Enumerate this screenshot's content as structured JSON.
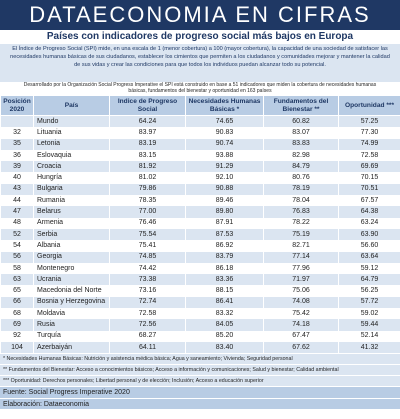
{
  "header": {
    "title": "DATAECONOMIA EN CIFRAS",
    "subtitle": "Países con indicadores de progreso social más bajos en Europa"
  },
  "intro": "El Índice de Progreso Social (SPI) mide, en una escala de 1 (menor cobertura) a 100 (mayor cobertura), la capacidad de una sociedad de satisfacer las necesidades humanas básicas de sus ciudadanos, establecer los cimientos que permiten a los ciudadanos y comunidades mejorar y mantener la calidad de sus vidas y crear las condiciones para que todos los individuos puedan alcanzar todo su potencial.",
  "note": "Desarrollado por la Organización Social Progress Imperative el SPI está construido en base a 51 indicadores que miden la cobertura de necesidades humanas básicas, fundamentos del bienestar y oportunidad en 163 países",
  "table": {
    "columns": [
      "Posición 2020",
      "País",
      "Indice de Progreso Social",
      "Necesidades Humanas Básicas *",
      "Fundamentos del Bienestar **",
      "Oportunidad ***"
    ],
    "rows": [
      [
        null,
        "Mundo",
        "64.24",
        "74.65",
        "60.82",
        "57.25"
      ],
      [
        "32",
        "Lituania",
        "83.97",
        "90.83",
        "83.07",
        "77.30"
      ],
      [
        "35",
        "Letonia",
        "83.19",
        "90.74",
        "83.83",
        "74.99"
      ],
      [
        "36",
        "Eslovaquia",
        "83.15",
        "93.88",
        "82.98",
        "72.58"
      ],
      [
        "39",
        "Croacia",
        "81.92",
        "91.29",
        "84.79",
        "69.69"
      ],
      [
        "40",
        "Hungría",
        "81.02",
        "92.10",
        "80.76",
        "70.15"
      ],
      [
        "43",
        "Bulgaria",
        "79.86",
        "90.88",
        "78.19",
        "70.51"
      ],
      [
        "44",
        "Rumania",
        "78.35",
        "89.46",
        "78.04",
        "67.57"
      ],
      [
        "47",
        "Belarus",
        "77.00",
        "89.80",
        "76.83",
        "64.38"
      ],
      [
        "48",
        "Armenia",
        "76.46",
        "87.91",
        "78.22",
        "63.24"
      ],
      [
        "52",
        "Serbia",
        "75.54",
        "87.53",
        "75.19",
        "63.90"
      ],
      [
        "54",
        "Albania",
        "75.41",
        "86.92",
        "82.71",
        "56.60"
      ],
      [
        "56",
        "Georgia",
        "74.85",
        "83.79",
        "77.14",
        "63.64"
      ],
      [
        "58",
        "Montenegro",
        "74.42",
        "86.18",
        "77.96",
        "59.12"
      ],
      [
        "63",
        "Ucrania",
        "73.38",
        "83.36",
        "71.97",
        "64.79"
      ],
      [
        "65",
        "Macedonia del Norte",
        "73.16",
        "88.15",
        "75.06",
        "56.25"
      ],
      [
        "66",
        "Bosnia y Herzegovina",
        "72.74",
        "86.41",
        "74.08",
        "57.72"
      ],
      [
        "68",
        "Moldavia",
        "72.58",
        "83.32",
        "75.42",
        "59.02"
      ],
      [
        "69",
        "Rusia",
        "72.56",
        "84.05",
        "74.18",
        "59.44"
      ],
      [
        "92",
        "Turquía",
        "68.27",
        "85.20",
        "67.47",
        "52.14"
      ],
      [
        "104",
        "Azerbaiyán",
        "64.11",
        "83.40",
        "67.62",
        "41.32"
      ]
    ]
  },
  "footnotes": [
    "* Necesidades Humanas Básicas: Nutrición y asistencia médica básica; Agua y saneamiento; Vivienda; Seguridad personal",
    "** Fundamentos del Bienestar: Acceso a conocimientos básicos; Acceso a información y comunicaciones; Salud y bienestar; Calidad ambiental",
    "*** Oportunidad: Derechos personales; Libertad personal y de elección; Inclusión; Acceso a educación superior"
  ],
  "source": "Fuente: Social Progress Imperative 2020",
  "credit": "Elaboración: Dataeconomia"
}
